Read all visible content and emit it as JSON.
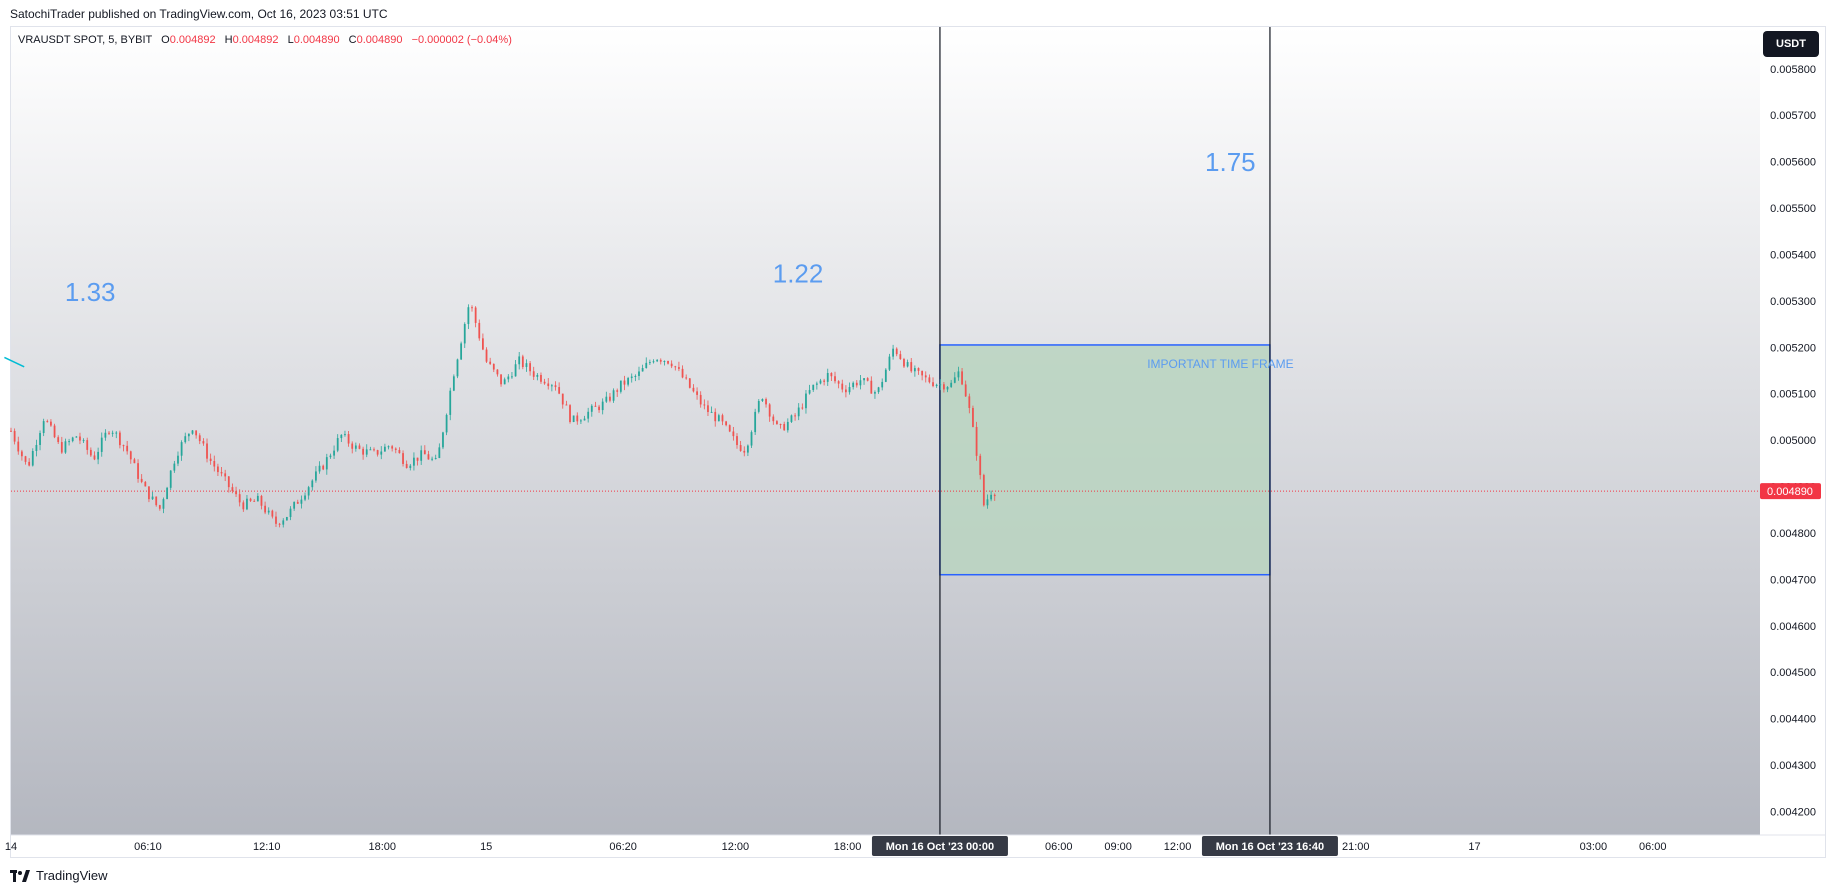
{
  "publisher_line": "SatochiTrader published on TradingView.com, Oct 16, 2023 03:51 UTC",
  "footer": {
    "brand": "TradingView"
  },
  "currency_button": "USDT",
  "legend": {
    "symbol": "VRAUSDT SPOT, 5, BYBIT",
    "o_label": "O",
    "o": "0.004892",
    "h_label": "H",
    "h": "0.004892",
    "l_label": "L",
    "l": "0.004890",
    "c_label": "C",
    "c": "0.004890",
    "change": "−0.000002 (−0.04%)"
  },
  "colors": {
    "up": "#26a69a",
    "down": "#ef5350",
    "annotation_text": "#5b9cf0",
    "box_fill": "#b9d3bf",
    "box_border": "#2962ff",
    "price_tag": "#f23645",
    "trendline": "#00bcd4",
    "vline": "#131722"
  },
  "chart_data": {
    "type": "candlestick",
    "symbol": "VRAUSDT SPOT, 5, BYBIT",
    "y_ticks": [
      "0.005800",
      "0.005700",
      "0.005600",
      "0.005500",
      "0.005400",
      "0.005300",
      "0.005200",
      "0.005100",
      "0.005000",
      "0.004900",
      "0.004800",
      "0.004700",
      "0.004600",
      "0.004500",
      "0.004400",
      "0.004300",
      "0.004200"
    ],
    "ylim": [
      0.00416,
      0.00589
    ],
    "last_price": 0.00489,
    "last_price_label": "0.004890",
    "x_ticks": [
      {
        "label": "14",
        "t": 0
      },
      {
        "label": "06:10",
        "t": 83
      },
      {
        "label": "12:10",
        "t": 155
      },
      {
        "label": "18:00",
        "t": 225
      },
      {
        "label": "15",
        "t": 288
      },
      {
        "label": "06:20",
        "t": 371
      },
      {
        "label": "12:00",
        "t": 439
      },
      {
        "label": "18:00",
        "t": 507
      },
      {
        "label": "06:00",
        "t": 635
      },
      {
        "label": "09:00",
        "t": 671
      },
      {
        "label": "12:00",
        "t": 707
      },
      {
        "label": "21:00",
        "t": 815
      },
      {
        "label": "17",
        "t": 887
      },
      {
        "label": "03:00",
        "t": 959
      },
      {
        "label": "06:00",
        "t": 995
      }
    ],
    "time_markers": [
      {
        "label": "Mon 16 Oct '23   00:00",
        "t": 563
      },
      {
        "label": "Mon 16 Oct '23   16:40",
        "t": 763
      }
    ],
    "annotations": [
      {
        "text": "1.33",
        "t": 48,
        "y": 0.0053
      },
      {
        "text": "1.22",
        "t": 477,
        "y": 0.00534
      },
      {
        "text": "1.75",
        "t": 739,
        "y": 0.00558
      },
      {
        "text": "IMPORTANT TIME FRAME",
        "t": 733,
        "y": 0.005155
      }
    ],
    "box": {
      "t_start": 563,
      "t_end": 763,
      "y_top": 0.005205,
      "y_bottom": 0.00471
    },
    "trendline": {
      "t1": -4,
      "y1": 0.005178,
      "t2": 8,
      "y2": 0.005158
    },
    "path": [
      [
        0,
        0.00502
      ],
      [
        10,
        0.00494
      ],
      [
        20,
        0.00505
      ],
      [
        30,
        0.00498
      ],
      [
        40,
        0.00501
      ],
      [
        50,
        0.00496
      ],
      [
        60,
        0.00503
      ],
      [
        70,
        0.00498
      ],
      [
        80,
        0.0049
      ],
      [
        90,
        0.00485
      ],
      [
        100,
        0.00497
      ],
      [
        110,
        0.00503
      ],
      [
        120,
        0.00496
      ],
      [
        130,
        0.00491
      ],
      [
        140,
        0.00486
      ],
      [
        150,
        0.00487
      ],
      [
        160,
        0.00482
      ],
      [
        168,
        0.00484
      ],
      [
        178,
        0.00489
      ],
      [
        190,
        0.00495
      ],
      [
        200,
        0.00501
      ],
      [
        210,
        0.00498
      ],
      [
        220,
        0.00497
      ],
      [
        230,
        0.00499
      ],
      [
        240,
        0.00495
      ],
      [
        250,
        0.00497
      ],
      [
        258,
        0.00495
      ],
      [
        268,
        0.00514
      ],
      [
        278,
        0.0053
      ],
      [
        288,
        0.00517
      ],
      [
        298,
        0.00512
      ],
      [
        308,
        0.00517
      ],
      [
        318,
        0.00514
      ],
      [
        330,
        0.00512
      ],
      [
        340,
        0.00504
      ],
      [
        350,
        0.00506
      ],
      [
        360,
        0.00508
      ],
      [
        370,
        0.00512
      ],
      [
        380,
        0.00514
      ],
      [
        390,
        0.00518
      ],
      [
        400,
        0.00517
      ],
      [
        410,
        0.00512
      ],
      [
        420,
        0.00507
      ],
      [
        430,
        0.00504
      ],
      [
        440,
        0.00499
      ],
      [
        445,
        0.00498
      ],
      [
        455,
        0.0051
      ],
      [
        465,
        0.00502
      ],
      [
        475,
        0.00505
      ],
      [
        485,
        0.00511
      ],
      [
        495,
        0.00514
      ],
      [
        505,
        0.00511
      ],
      [
        515,
        0.00513
      ],
      [
        525,
        0.0051
      ],
      [
        535,
        0.0052
      ],
      [
        545,
        0.00515
      ],
      [
        555,
        0.00513
      ],
      [
        563,
        0.00512
      ],
      [
        570,
        0.00512
      ],
      [
        575,
        0.00515
      ],
      [
        580,
        0.00508
      ],
      [
        585,
        0.00498
      ],
      [
        590,
        0.00485
      ],
      [
        593,
        0.00489
      ],
      [
        598,
        0.00489
      ]
    ]
  }
}
